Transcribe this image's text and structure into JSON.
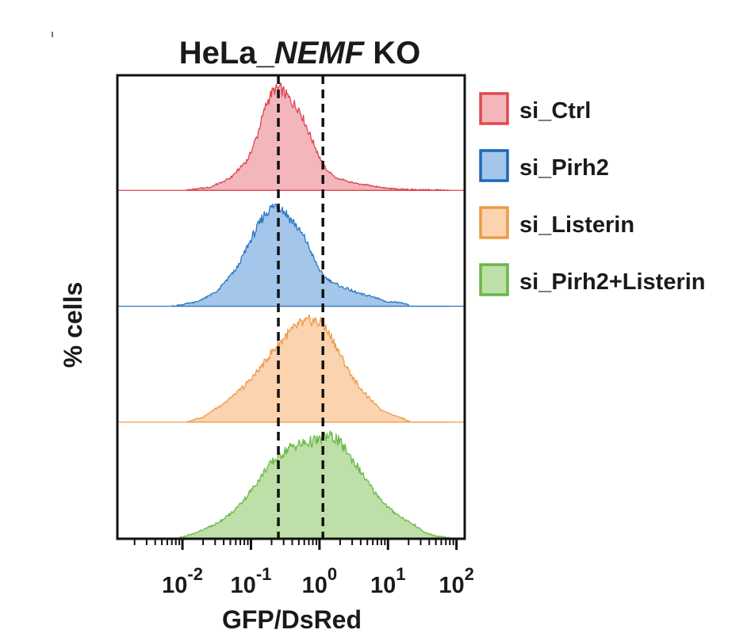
{
  "chart_data": {
    "type": "area",
    "title": {
      "prefix": "HeLa_",
      "italic": "NEMF",
      "suffix": " KO"
    },
    "xlabel": "GFP/DsRed",
    "ylabel": "% cells",
    "x_scale": "log10",
    "xlim": [
      -2.95,
      2.12
    ],
    "ticks": [
      {
        "value": -2,
        "base": "10",
        "exp": "-2"
      },
      {
        "value": -1,
        "base": "10",
        "exp": "-1"
      },
      {
        "value": 0,
        "base": "10",
        "exp": "0"
      },
      {
        "value": 1,
        "base": "10",
        "exp": "1"
      },
      {
        "value": 2,
        "base": "10",
        "exp": "2"
      }
    ],
    "reference_lines_log10": [
      -0.6,
      0.05
    ],
    "series": [
      {
        "name": "si_Ctrl",
        "fill": "#f2b6bb",
        "stroke": "#e0434f",
        "legend_border": "#e04a4f",
        "curve": [
          [
            -1.95,
            0
          ],
          [
            -1.6,
            0.03
          ],
          [
            -1.3,
            0.12
          ],
          [
            -1.05,
            0.3
          ],
          [
            -0.9,
            0.55
          ],
          [
            -0.8,
            0.8
          ],
          [
            -0.72,
            0.93
          ],
          [
            -0.65,
            0.99
          ],
          [
            -0.58,
            1.0
          ],
          [
            -0.5,
            0.95
          ],
          [
            -0.4,
            0.86
          ],
          [
            -0.3,
            0.8
          ],
          [
            -0.2,
            0.64
          ],
          [
            -0.1,
            0.48
          ],
          [
            0.0,
            0.33
          ],
          [
            0.1,
            0.2
          ],
          [
            0.25,
            0.12
          ],
          [
            0.45,
            0.08
          ],
          [
            0.7,
            0.05
          ],
          [
            0.9,
            0.03
          ],
          [
            1.0,
            0.02
          ],
          [
            1.2,
            0.01
          ],
          [
            1.9,
            0
          ]
        ]
      },
      {
        "name": "si_Pirh2",
        "fill": "#a3c6ea",
        "stroke": "#2f76c0",
        "legend_border": "#1f67b3",
        "curve": [
          [
            -2.15,
            0
          ],
          [
            -1.8,
            0.04
          ],
          [
            -1.5,
            0.14
          ],
          [
            -1.2,
            0.38
          ],
          [
            -0.95,
            0.72
          ],
          [
            -0.8,
            0.9
          ],
          [
            -0.7,
            0.97
          ],
          [
            -0.6,
            1.0
          ],
          [
            -0.5,
            0.92
          ],
          [
            -0.35,
            0.8
          ],
          [
            -0.2,
            0.65
          ],
          [
            -0.08,
            0.46
          ],
          [
            0.05,
            0.3
          ],
          [
            0.2,
            0.23
          ],
          [
            0.4,
            0.17
          ],
          [
            0.6,
            0.12
          ],
          [
            0.8,
            0.09
          ],
          [
            0.95,
            0.05
          ],
          [
            1.1,
            0.04
          ],
          [
            1.27,
            0.02
          ],
          [
            1.32,
            0
          ],
          [
            1.9,
            0
          ]
        ]
      },
      {
        "name": "si_Listerin",
        "fill": "#fbd3ae",
        "stroke": "#ef9c4e",
        "legend_border": "#ee9a48",
        "curve": [
          [
            -1.95,
            0
          ],
          [
            -1.7,
            0.05
          ],
          [
            -1.4,
            0.18
          ],
          [
            -1.1,
            0.35
          ],
          [
            -0.9,
            0.5
          ],
          [
            -0.7,
            0.68
          ],
          [
            -0.5,
            0.84
          ],
          [
            -0.3,
            0.96
          ],
          [
            -0.1,
            1.0
          ],
          [
            0.05,
            0.96
          ],
          [
            0.2,
            0.8
          ],
          [
            0.35,
            0.6
          ],
          [
            0.5,
            0.42
          ],
          [
            0.7,
            0.25
          ],
          [
            0.9,
            0.12
          ],
          [
            1.1,
            0.06
          ],
          [
            1.25,
            0.03
          ],
          [
            1.32,
            0
          ],
          [
            1.9,
            0
          ]
        ]
      },
      {
        "name": "si_Pirh2+Listerin",
        "fill": "#bee0a8",
        "stroke": "#6dba4b",
        "legend_border": "#6bb64a",
        "curve": [
          [
            -2.05,
            0
          ],
          [
            -1.8,
            0.05
          ],
          [
            -1.5,
            0.14
          ],
          [
            -1.25,
            0.26
          ],
          [
            -1.0,
            0.46
          ],
          [
            -0.8,
            0.66
          ],
          [
            -0.6,
            0.8
          ],
          [
            -0.4,
            0.9
          ],
          [
            -0.2,
            0.93
          ],
          [
            0.0,
            0.96
          ],
          [
            0.12,
            1.0
          ],
          [
            0.25,
            0.97
          ],
          [
            0.4,
            0.85
          ],
          [
            0.6,
            0.65
          ],
          [
            0.8,
            0.45
          ],
          [
            1.0,
            0.3
          ],
          [
            1.2,
            0.2
          ],
          [
            1.4,
            0.12
          ],
          [
            1.55,
            0.05
          ],
          [
            1.7,
            0.02
          ],
          [
            1.9,
            0
          ]
        ]
      }
    ],
    "legend": {
      "position": "right"
    }
  }
}
